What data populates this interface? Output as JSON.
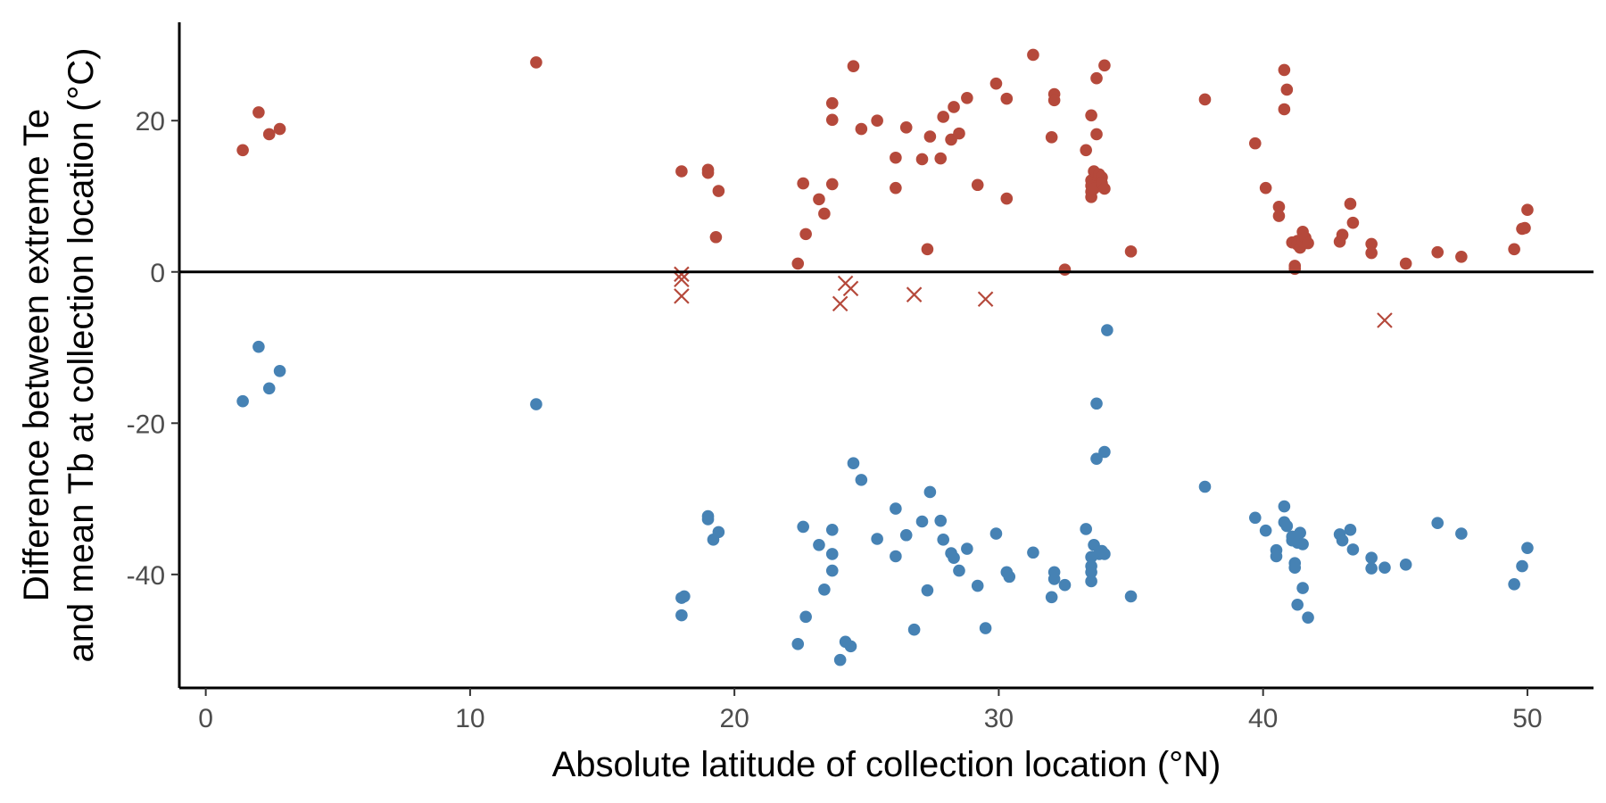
{
  "chart_data": {
    "type": "scatter",
    "xlabel": "Absolute latitude of collection location (°N)",
    "ylabel_lines": [
      "Difference between extreme Te",
      "and mean Tb at collection location (°C)"
    ],
    "xlim": [
      -1,
      52.5
    ],
    "ylim": [
      -55,
      33
    ],
    "x_ticks": [
      0,
      10,
      20,
      30,
      40,
      50
    ],
    "y_ticks": [
      -40,
      -20,
      0,
      20
    ],
    "x_tick_labels": [
      "0",
      "10",
      "20",
      "30",
      "40",
      "50"
    ],
    "y_tick_labels": [
      "-40",
      "-20",
      "0",
      "20"
    ],
    "reference_line_y": 0,
    "grid": false,
    "colors": {
      "warm": "#B5493B",
      "cold": "#4682B4",
      "axis": "#000000"
    },
    "series": [
      {
        "marker": "circle",
        "color": "#B5493B",
        "points": [
          [
            1.4,
            16.1
          ],
          [
            2.0,
            21.1
          ],
          [
            2.4,
            18.2
          ],
          [
            2.8,
            18.9
          ],
          [
            12.5,
            27.7
          ],
          [
            18.0,
            13.3
          ],
          [
            19.0,
            13.5
          ],
          [
            19.0,
            13.1
          ],
          [
            19.3,
            4.6
          ],
          [
            19.4,
            10.7
          ],
          [
            22.4,
            1.1
          ],
          [
            22.6,
            11.7
          ],
          [
            22.7,
            5.0
          ],
          [
            23.2,
            9.6
          ],
          [
            23.4,
            7.7
          ],
          [
            23.7,
            11.6
          ],
          [
            23.7,
            22.3
          ],
          [
            23.7,
            20.1
          ],
          [
            24.5,
            27.2
          ],
          [
            24.8,
            18.9
          ],
          [
            25.4,
            20.0
          ],
          [
            26.1,
            11.1
          ],
          [
            26.1,
            15.1
          ],
          [
            26.5,
            19.1
          ],
          [
            27.1,
            14.9
          ],
          [
            27.3,
            3.0
          ],
          [
            27.4,
            17.9
          ],
          [
            27.8,
            15.0
          ],
          [
            27.9,
            20.5
          ],
          [
            28.2,
            17.5
          ],
          [
            28.3,
            21.8
          ],
          [
            28.5,
            18.3
          ],
          [
            28.8,
            23.0
          ],
          [
            29.2,
            11.5
          ],
          [
            29.9,
            24.9
          ],
          [
            30.3,
            22.9
          ],
          [
            30.3,
            9.7
          ],
          [
            31.3,
            28.7
          ],
          [
            32.0,
            17.8
          ],
          [
            32.1,
            23.5
          ],
          [
            32.1,
            22.7
          ],
          [
            32.5,
            0.3
          ],
          [
            33.3,
            16.1
          ],
          [
            33.5,
            20.7
          ],
          [
            33.5,
            12.1
          ],
          [
            33.5,
            11.4
          ],
          [
            33.5,
            10.6
          ],
          [
            33.5,
            9.9
          ],
          [
            33.6,
            13.3
          ],
          [
            33.6,
            11.0
          ],
          [
            33.7,
            18.2
          ],
          [
            33.7,
            25.6
          ],
          [
            33.8,
            12.9
          ],
          [
            33.9,
            12.5
          ],
          [
            33.9,
            11.7
          ],
          [
            34.0,
            27.3
          ],
          [
            34.0,
            11.0
          ],
          [
            35.0,
            2.7
          ],
          [
            37.8,
            22.8
          ],
          [
            39.7,
            17.0
          ],
          [
            40.1,
            11.1
          ],
          [
            40.6,
            8.6
          ],
          [
            40.6,
            7.4
          ],
          [
            40.8,
            26.7
          ],
          [
            40.8,
            21.5
          ],
          [
            40.9,
            24.1
          ],
          [
            41.1,
            3.9
          ],
          [
            41.2,
            0.8
          ],
          [
            41.2,
            0.4
          ],
          [
            41.3,
            4.1
          ],
          [
            41.3,
            3.6
          ],
          [
            41.4,
            3.2
          ],
          [
            41.5,
            5.3
          ],
          [
            41.5,
            4.0
          ],
          [
            41.6,
            4.5
          ],
          [
            41.7,
            3.8
          ],
          [
            42.9,
            4.0
          ],
          [
            43.0,
            4.9
          ],
          [
            43.3,
            9.0
          ],
          [
            43.4,
            6.5
          ],
          [
            44.1,
            3.7
          ],
          [
            44.1,
            2.5
          ],
          [
            45.4,
            1.1
          ],
          [
            46.6,
            2.6
          ],
          [
            47.5,
            2.0
          ],
          [
            49.5,
            3.0
          ],
          [
            49.8,
            5.7
          ],
          [
            49.9,
            5.8
          ],
          [
            50.0,
            8.2
          ]
        ]
      },
      {
        "marker": "x",
        "color": "#B5493B",
        "points": [
          [
            18.0,
            -0.3
          ],
          [
            18.0,
            -1.0
          ],
          [
            18.0,
            -3.2
          ],
          [
            24.0,
            -4.2
          ],
          [
            24.2,
            -1.5
          ],
          [
            24.4,
            -2.2
          ],
          [
            26.8,
            -3.0
          ],
          [
            29.5,
            -3.6
          ],
          [
            44.6,
            -6.4
          ]
        ]
      },
      {
        "marker": "circle",
        "color": "#4682B4",
        "points": [
          [
            1.4,
            -17.1
          ],
          [
            2.0,
            -9.9
          ],
          [
            2.4,
            -15.4
          ],
          [
            2.8,
            -13.1
          ],
          [
            12.5,
            -17.5
          ],
          [
            18.0,
            -43.1
          ],
          [
            18.1,
            -42.9
          ],
          [
            18.0,
            -45.4
          ],
          [
            19.0,
            -32.3
          ],
          [
            19.0,
            -32.7
          ],
          [
            19.2,
            -35.4
          ],
          [
            19.4,
            -34.4
          ],
          [
            22.4,
            -49.2
          ],
          [
            22.6,
            -33.7
          ],
          [
            22.7,
            -45.6
          ],
          [
            23.2,
            -36.1
          ],
          [
            23.4,
            -42.0
          ],
          [
            23.7,
            -34.1
          ],
          [
            23.7,
            -37.3
          ],
          [
            23.7,
            -39.5
          ],
          [
            24.0,
            -51.3
          ],
          [
            24.2,
            -48.9
          ],
          [
            24.4,
            -49.5
          ],
          [
            24.5,
            -25.3
          ],
          [
            24.8,
            -27.5
          ],
          [
            25.4,
            -35.3
          ],
          [
            26.1,
            -31.3
          ],
          [
            26.1,
            -37.6
          ],
          [
            26.5,
            -34.8
          ],
          [
            26.8,
            -47.3
          ],
          [
            27.1,
            -33.0
          ],
          [
            27.3,
            -42.1
          ],
          [
            27.4,
            -29.1
          ],
          [
            27.8,
            -32.9
          ],
          [
            27.9,
            -35.4
          ],
          [
            28.2,
            -37.2
          ],
          [
            28.3,
            -37.8
          ],
          [
            28.5,
            -39.5
          ],
          [
            28.8,
            -36.6
          ],
          [
            29.2,
            -41.5
          ],
          [
            29.5,
            -47.1
          ],
          [
            29.9,
            -34.6
          ],
          [
            30.3,
            -39.7
          ],
          [
            30.4,
            -40.3
          ],
          [
            31.3,
            -37.1
          ],
          [
            32.0,
            -43.0
          ],
          [
            32.1,
            -39.7
          ],
          [
            32.1,
            -40.6
          ],
          [
            32.5,
            -41.4
          ],
          [
            33.3,
            -34.0
          ],
          [
            33.5,
            -40.9
          ],
          [
            33.5,
            -39.7
          ],
          [
            33.5,
            -38.9
          ],
          [
            33.5,
            -37.7
          ],
          [
            33.6,
            -36.1
          ],
          [
            33.7,
            -24.7
          ],
          [
            33.7,
            -17.4
          ],
          [
            33.8,
            -37.3
          ],
          [
            33.9,
            -36.9
          ],
          [
            34.0,
            -37.3
          ],
          [
            34.0,
            -23.8
          ],
          [
            34.1,
            -7.7
          ],
          [
            35.0,
            -42.9
          ],
          [
            37.8,
            -28.4
          ],
          [
            39.7,
            -32.5
          ],
          [
            40.1,
            -34.2
          ],
          [
            40.5,
            -36.8
          ],
          [
            40.5,
            -37.6
          ],
          [
            40.8,
            -31.0
          ],
          [
            40.8,
            -33.1
          ],
          [
            40.9,
            -33.6
          ],
          [
            41.1,
            -35.0
          ],
          [
            41.1,
            -35.5
          ],
          [
            41.2,
            -38.5
          ],
          [
            41.2,
            -39.1
          ],
          [
            41.3,
            -35.8
          ],
          [
            41.3,
            -44.0
          ],
          [
            41.4,
            -34.5
          ],
          [
            41.5,
            -36.0
          ],
          [
            41.5,
            -41.8
          ],
          [
            41.7,
            -45.7
          ],
          [
            42.9,
            -34.7
          ],
          [
            43.0,
            -35.5
          ],
          [
            43.3,
            -34.1
          ],
          [
            43.4,
            -36.7
          ],
          [
            44.1,
            -37.8
          ],
          [
            44.1,
            -39.2
          ],
          [
            44.6,
            -39.1
          ],
          [
            45.4,
            -38.7
          ],
          [
            46.6,
            -33.2
          ],
          [
            47.5,
            -34.6
          ],
          [
            49.5,
            -41.3
          ],
          [
            49.8,
            -38.9
          ],
          [
            50.0,
            -36.5
          ]
        ]
      }
    ]
  }
}
